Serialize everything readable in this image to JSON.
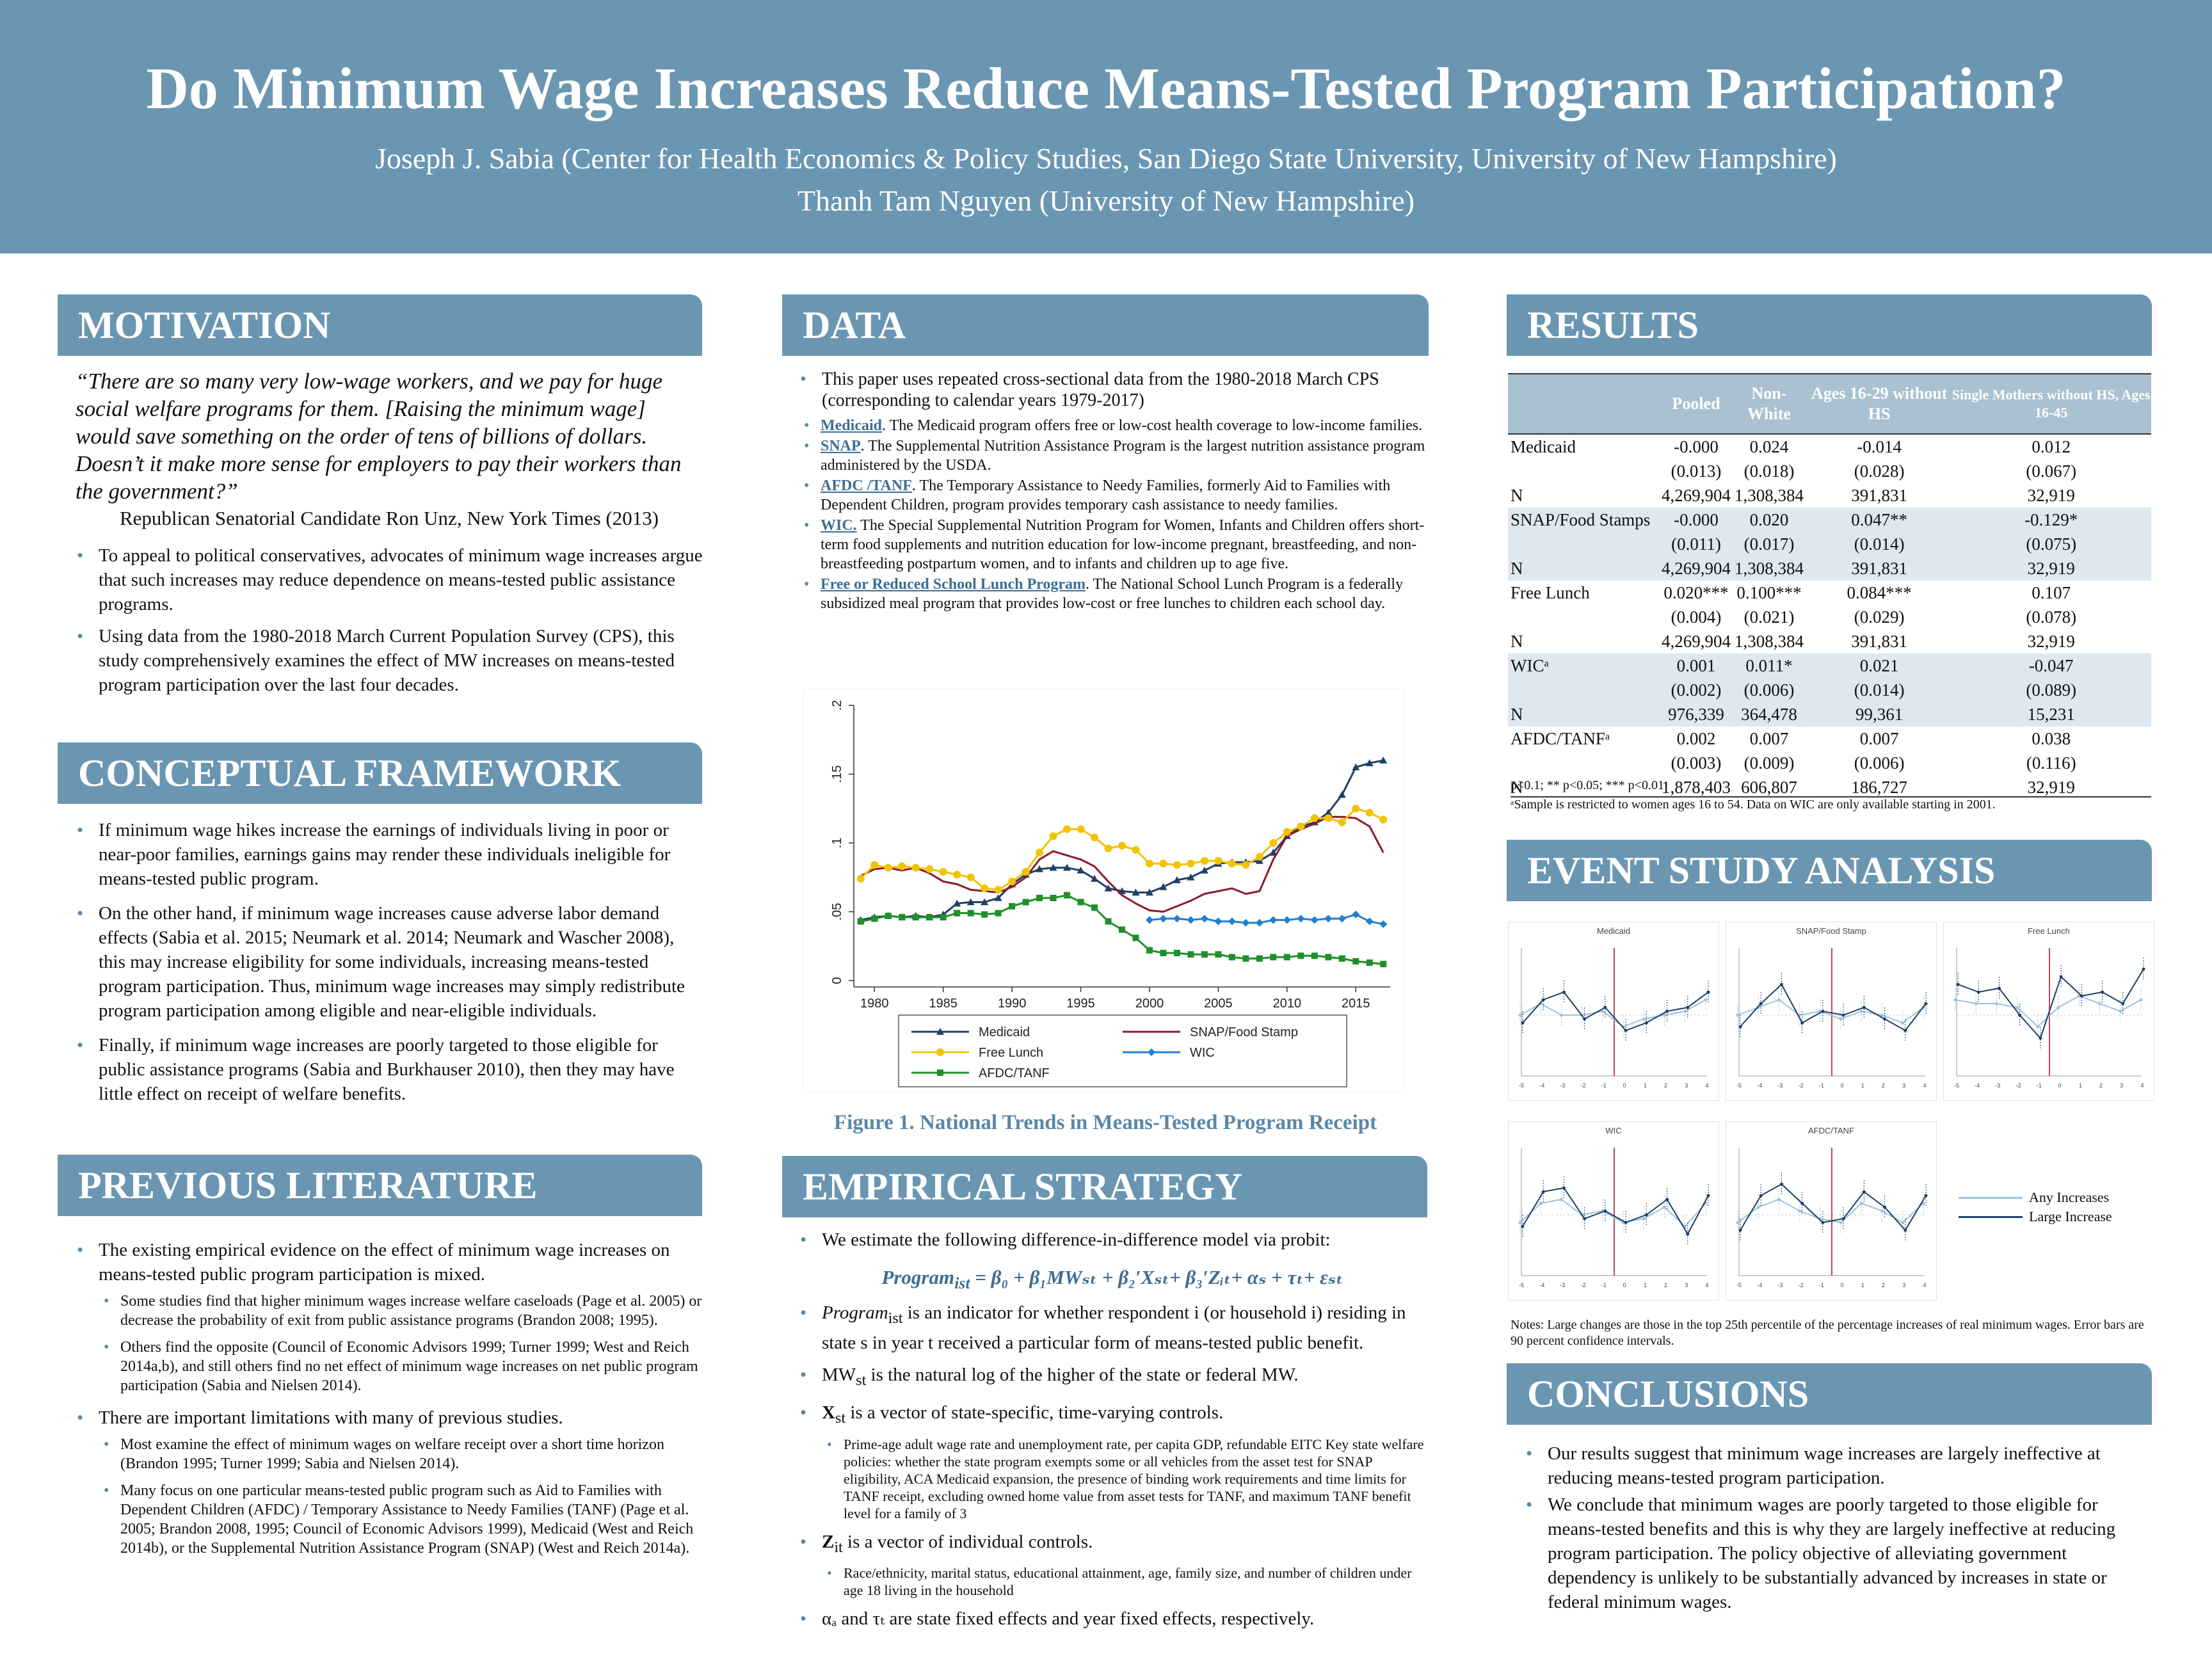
{
  "header": {
    "title": "Do Minimum Wage Increases Reduce Means-Tested  Program Participation?",
    "authors_1": "Joseph J. Sabia (Center for Health Economics & Policy Studies, San Diego State University, University of New Hampshire)",
    "authors_2": "Thanh Tam Nguyen (University of New Hampshire)"
  },
  "motivation": {
    "heading": "MOTIVATION",
    "quote": "“There are so many very low-wage workers, and we pay for huge social welfare programs for them.  [Raising the minimum wage] would save something on the order of tens of billions of dollars. Doesn’t it make more sense for employers to pay their workers than the government?”",
    "attribution": "Republican Senatorial Candidate Ron Unz, New York Times (2013)",
    "bullets": [
      "To appeal to political conservatives, advocates of minimum wage increases argue that such increases may reduce dependence on means-tested public assistance programs.",
      "Using data from the 1980-2018 March Current Population Survey (CPS), this study comprehensively examines the effect of MW increases on means-tested program participation over the last four decades."
    ]
  },
  "conceptual": {
    "heading": "CONCEPTUAL FRAMEWORK",
    "bullets": [
      "If minimum wage hikes increase the earnings of individuals living in poor or near-poor families, earnings gains may render these individuals ineligible for means-tested public program.",
      "On the other hand, if minimum wage increases cause adverse labor demand effects (Sabia et al. 2015; Neumark et al. 2014; Neumark and Wascher 2008), this may increase eligibility for some individuals, increasing means-tested program participation. Thus, minimum wage increases may simply redistribute program participation among eligible and near-eligible individuals.",
      "Finally, if minimum wage increases are poorly targeted to those eligible for public assistance programs (Sabia and Burkhauser 2010), then they may have little effect on receipt of welfare benefits."
    ]
  },
  "literature": {
    "heading": "PREVIOUS LITERATURE",
    "b1": "The existing empirical evidence on the effect of minimum wage increases on means-tested public program participation is mixed.",
    "b1_sub": [
      "Some studies find that higher minimum wages increase welfare caseloads (Page et al. 2005) or decrease the probability of exit from public assistance programs (Brandon 2008; 1995).",
      "Others find the opposite (Council of Economic Advisors 1999; Turner 1999; West and Reich 2014a,b), and still others find no net effect of minimum wage increases on net public program participation (Sabia and Nielsen 2014)."
    ],
    "b2": "There are important limitations with many of previous studies.",
    "b2_sub": [
      "Most examine the effect of minimum wages on welfare receipt over a short time horizon (Brandon 1995; Turner 1999; Sabia and Nielsen 2014).",
      "Many focus on one particular means-tested public program such as Aid to Families with Dependent Children (AFDC) / Temporary Assistance to Needy Families (TANF) (Page et al. 2005; Brandon 2008, 1995; Council of Economic Advisors 1999), Medicaid (West and Reich 2014b), or the Supplemental Nutrition Assistance Program (SNAP) (West and Reich 2014a)."
    ]
  },
  "data_section": {
    "heading": "DATA",
    "intro": "This paper uses repeated cross-sectional data from the 1980-2018 March CPS (corresponding to calendar years 1979-2017)",
    "items": [
      {
        "name": "Medicaid",
        "text": ".  The Medicaid program offers free or low-cost health coverage to low-income families."
      },
      {
        "name": "SNAP",
        "text": ".  The Supplemental Nutrition Assistance Program is the largest nutrition assistance program administered by the USDA."
      },
      {
        "name": "AFDC /TANF",
        "text": ". The Temporary Assistance to Needy Families, formerly Aid to Families with Dependent Children, program provides temporary cash assistance to needy families."
      },
      {
        "name": "WIC.",
        "text": " The Special Supplemental Nutrition Program for Women, Infants and Children offers short-term food supplements and nutrition education for low-income pregnant, breastfeeding, and non-breastfeeding postpartum women, and to infants and children up to age five."
      },
      {
        "name": "Free or Reduced School Lunch Program",
        "text": ". The National School Lunch Program is a federally subsidized meal program that provides low-cost or free lunches to children each school day."
      }
    ]
  },
  "figure1": {
    "caption": "Figure 1. National Trends in Means-Tested Program Receipt"
  },
  "chart_data": {
    "type": "line",
    "x": [
      1979,
      1980,
      1981,
      1982,
      1983,
      1984,
      1985,
      1986,
      1987,
      1988,
      1989,
      1990,
      1991,
      1992,
      1993,
      1994,
      1995,
      1996,
      1997,
      1998,
      1999,
      2000,
      2001,
      2002,
      2003,
      2004,
      2005,
      2006,
      2007,
      2008,
      2009,
      2010,
      2011,
      2012,
      2013,
      2014,
      2015,
      2016,
      2017
    ],
    "ylim": [
      0,
      0.2
    ],
    "yticks": [
      "0",
      ".05",
      ".1",
      ".15",
      ".2"
    ],
    "xticks": [
      "1980",
      "1985",
      "1990",
      "1995",
      "2000",
      "2005",
      "2010",
      "2015"
    ],
    "legend_position": "bottom",
    "series": [
      {
        "name": "Medicaid",
        "color": "#1f3f66",
        "marker": "triangle",
        "values": [
          0.044,
          0.046,
          0.047,
          0.046,
          0.047,
          0.046,
          0.048,
          0.056,
          0.057,
          0.057,
          0.06,
          0.07,
          0.077,
          0.081,
          0.082,
          0.082,
          0.08,
          0.074,
          0.067,
          0.065,
          0.064,
          0.064,
          0.068,
          0.073,
          0.075,
          0.08,
          0.085,
          0.086,
          0.086,
          0.087,
          0.093,
          0.105,
          0.112,
          0.115,
          0.122,
          0.135,
          0.155,
          0.158,
          0.16
        ]
      },
      {
        "name": "SNAP/Food Stamp",
        "color": "#8b1a2b",
        "marker": "none",
        "values": [
          0.076,
          0.081,
          0.082,
          0.08,
          0.082,
          0.078,
          0.072,
          0.07,
          0.066,
          0.065,
          0.064,
          0.068,
          0.075,
          0.088,
          0.094,
          0.091,
          0.088,
          0.083,
          0.072,
          0.062,
          0.056,
          0.051,
          0.05,
          0.054,
          0.058,
          0.063,
          0.065,
          0.067,
          0.063,
          0.065,
          0.088,
          0.105,
          0.11,
          0.114,
          0.119,
          0.119,
          0.118,
          0.112,
          0.093
        ]
      },
      {
        "name": "Free Lunch",
        "color": "#f2c300",
        "marker": "circle",
        "values": [
          0.074,
          0.084,
          0.082,
          0.083,
          0.082,
          0.081,
          0.079,
          0.077,
          0.075,
          0.067,
          0.066,
          0.072,
          0.079,
          0.093,
          0.105,
          0.11,
          0.11,
          0.104,
          0.096,
          0.098,
          0.095,
          0.085,
          0.085,
          0.084,
          0.085,
          0.087,
          0.087,
          0.085,
          0.084,
          0.09,
          0.1,
          0.108,
          0.112,
          0.118,
          0.118,
          0.115,
          0.125,
          0.122,
          0.117
        ]
      },
      {
        "name": "WIC",
        "color": "#1f7fd1",
        "marker": "diamond",
        "values": [
          null,
          null,
          null,
          null,
          null,
          null,
          null,
          null,
          null,
          null,
          null,
          null,
          null,
          null,
          null,
          null,
          null,
          null,
          null,
          null,
          null,
          0.044,
          0.045,
          0.045,
          0.044,
          0.045,
          0.043,
          0.043,
          0.042,
          0.042,
          0.044,
          0.044,
          0.045,
          0.044,
          0.045,
          0.045,
          0.048,
          0.043,
          0.041
        ]
      },
      {
        "name": "AFDC/TANF",
        "color": "#1f8f2a",
        "marker": "square",
        "values": [
          0.043,
          0.045,
          0.047,
          0.046,
          0.046,
          0.046,
          0.046,
          0.049,
          0.049,
          0.048,
          0.049,
          0.054,
          0.057,
          0.06,
          0.06,
          0.062,
          0.057,
          0.053,
          0.043,
          0.037,
          0.031,
          0.022,
          0.02,
          0.02,
          0.019,
          0.019,
          0.019,
          0.017,
          0.016,
          0.016,
          0.017,
          0.017,
          0.018,
          0.018,
          0.017,
          0.016,
          0.014,
          0.013,
          0.012
        ]
      }
    ]
  },
  "strategy": {
    "heading": "EMPIRICAL STRATEGY",
    "intro": "We estimate the following difference-in-difference model via probit:",
    "eq_main": "Program",
    "eq_rest": " = β₀ + β₁MWₛₜ + β₂′Xₛₜ+ β₃′Zᵢₜ+ αₛ + τₜ+ εₛₜ",
    "eq_sub": "ist",
    "b2_var": "Program",
    "b2_sub": "ist",
    "b2_text": " is an indicator for whether respondent i (or household i) residing in state s in year t received a particular form of means-tested public benefit.",
    "b3_var": "MW",
    "b3_sub": "st",
    "b3_text": " is the natural log of the higher of the state or federal MW.",
    "b4_var": "X",
    "b4_sub": "st",
    "b4_text": " is a vector of state-specific, time-varying controls.",
    "b4_detail": "Prime-age adult wage rate and unemployment rate, per capita GDP, refundable EITC Key state welfare policies: whether the state program exempts some or all vehicles from the asset test for SNAP eligibility, ACA Medicaid expansion, the presence of binding work requirements and time limits for TANF receipt, excluding owned home value from asset tests for TANF, and maximum TANF benefit level for a family of 3",
    "b5_var": "Z",
    "b5_sub": "it",
    "b5_text": " is a vector of individual controls.",
    "b5_detail": "Race/ethnicity, marital status, educational attainment, age, family size, and number of children under age 18 living in the household",
    "b6_text": "αₐ and τₜ are state fixed effects and year fixed effects, respectively."
  },
  "results": {
    "heading": "RESULTS",
    "columns": [
      "",
      "Pooled",
      "Non-White",
      "Ages 16-29 without HS",
      "Single Mothers without HS, Ages 16-45"
    ],
    "rows": [
      [
        "Medicaid",
        "-0.000",
        "0.024",
        "-0.014",
        "0.012"
      ],
      [
        "",
        "(0.013)",
        "(0.018)",
        "(0.028)",
        "(0.067)"
      ],
      [
        "N",
        "4,269,904",
        "1,308,384",
        "391,831",
        "32,919"
      ],
      [
        "SNAP/Food Stamps",
        "-0.000",
        "0.020",
        "0.047**",
        "-0.129*"
      ],
      [
        "",
        "(0.011)",
        "(0.017)",
        "(0.014)",
        "(0.075)"
      ],
      [
        "N",
        "4,269,904",
        "1,308,384",
        "391,831",
        "32,919"
      ],
      [
        "Free Lunch",
        "0.020***",
        "0.100***",
        "0.084***",
        "0.107"
      ],
      [
        "",
        "(0.004)",
        "(0.021)",
        "(0.029)",
        "(0.078)"
      ],
      [
        "N",
        "4,269,904",
        "1,308,384",
        "391,831",
        "32,919"
      ],
      [
        "WICᵃ",
        "0.001",
        "0.011*",
        "0.021",
        "-0.047"
      ],
      [
        "",
        "(0.002)",
        "(0.006)",
        "(0.014)",
        "(0.089)"
      ],
      [
        "N",
        "976,339",
        "364,478",
        "99,361",
        "15,231"
      ],
      [
        "AFDC/TANFᵃ",
        "0.002",
        "0.007",
        "0.007",
        "0.038"
      ],
      [
        "",
        "(0.003)",
        "(0.009)",
        "(0.006)",
        "(0.116)"
      ],
      [
        "N",
        "1,878,403",
        "606,807",
        "186,727",
        "32,919"
      ]
    ],
    "note1": "p<0.1; ** p<0.05; *** p<0.01",
    "note2": "ᵃSample is restricted to women ages 16 to 54. Data on WIC are only available starting in 2001."
  },
  "event": {
    "heading": "EVENT STUDY ANALYSIS",
    "panels": [
      "Medicaid",
      "SNAP/Food Stamp",
      "Free Lunch",
      "WIC",
      "AFDC/TANF"
    ],
    "legend": [
      "Any Increases",
      "Large Increase"
    ],
    "xlabels": [
      "-5",
      "-4",
      "-3",
      "-2",
      "-1",
      "0",
      "1",
      "2",
      "3",
      "4"
    ],
    "notes": "Notes: Large changes are those in the top 25th percentile of the percentage increases of real minimum wages. Error bars are 90 percent confidence intervals."
  },
  "conclusions": {
    "heading": "CONCLUSIONS",
    "bullets": [
      "Our results suggest that minimum wage increases are largely ineffective at reducing means-tested program participation.",
      "We conclude that minimum wages are poorly targeted to those eligible for means-tested benefits and this is why they are largely ineffective at reducing program participation. The policy objective of alleviating government dependency is unlikely to be substantially advanced by increases in state or federal minimum wages."
    ]
  }
}
